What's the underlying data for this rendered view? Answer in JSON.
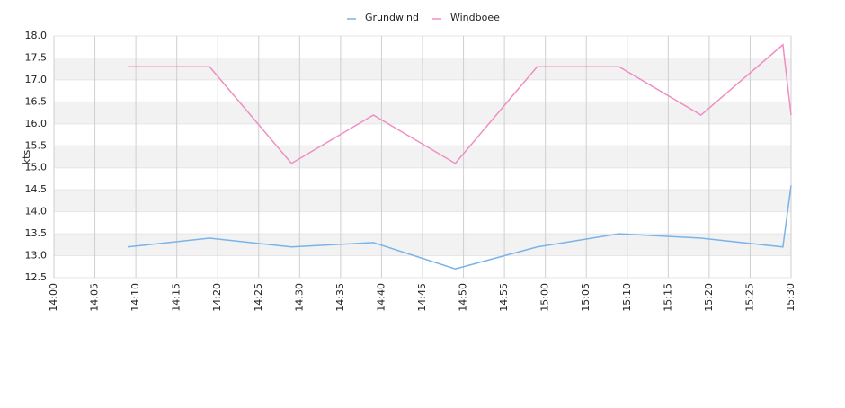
{
  "chart_data": {
    "type": "line",
    "y_label": "kts",
    "x": [
      "14:09",
      "14:19",
      "14:29",
      "14:39",
      "14:49",
      "14:59",
      "15:09",
      "15:19",
      "15:29",
      "15:30"
    ],
    "series": [
      {
        "name": "Grundwind",
        "color": "#7ab3ea",
        "values": [
          13.2,
          13.4,
          13.2,
          13.3,
          12.7,
          13.2,
          13.5,
          13.4,
          13.2,
          14.6
        ]
      },
      {
        "name": "Windboee",
        "color": "#f08dc2",
        "values": [
          17.3,
          17.3,
          15.1,
          16.2,
          15.1,
          17.3,
          17.3,
          16.2,
          17.8,
          16.2
        ]
      }
    ],
    "xlim": [
      "14:00",
      "15:30"
    ],
    "xticks": [
      "14:00",
      "14:05",
      "14:10",
      "14:15",
      "14:20",
      "14:25",
      "14:30",
      "14:35",
      "14:40",
      "14:45",
      "14:50",
      "14:55",
      "15:00",
      "15:05",
      "15:10",
      "15:15",
      "15:20",
      "15:25",
      "15:30"
    ],
    "ylim": [
      12.5,
      18
    ],
    "yticks": [
      12.5,
      {
        "value": 13,
        "label": "13.0"
      },
      13.5,
      {
        "value": 14,
        "label": "14.0"
      },
      14.5,
      {
        "value": 15,
        "label": "15.0"
      },
      15.5,
      {
        "value": 16,
        "label": "16.0"
      },
      16.5,
      {
        "value": 17,
        "label": "17.0"
      },
      17.5,
      {
        "value": 18,
        "label": "18.0"
      }
    ],
    "grid": true,
    "legend": "top"
  }
}
